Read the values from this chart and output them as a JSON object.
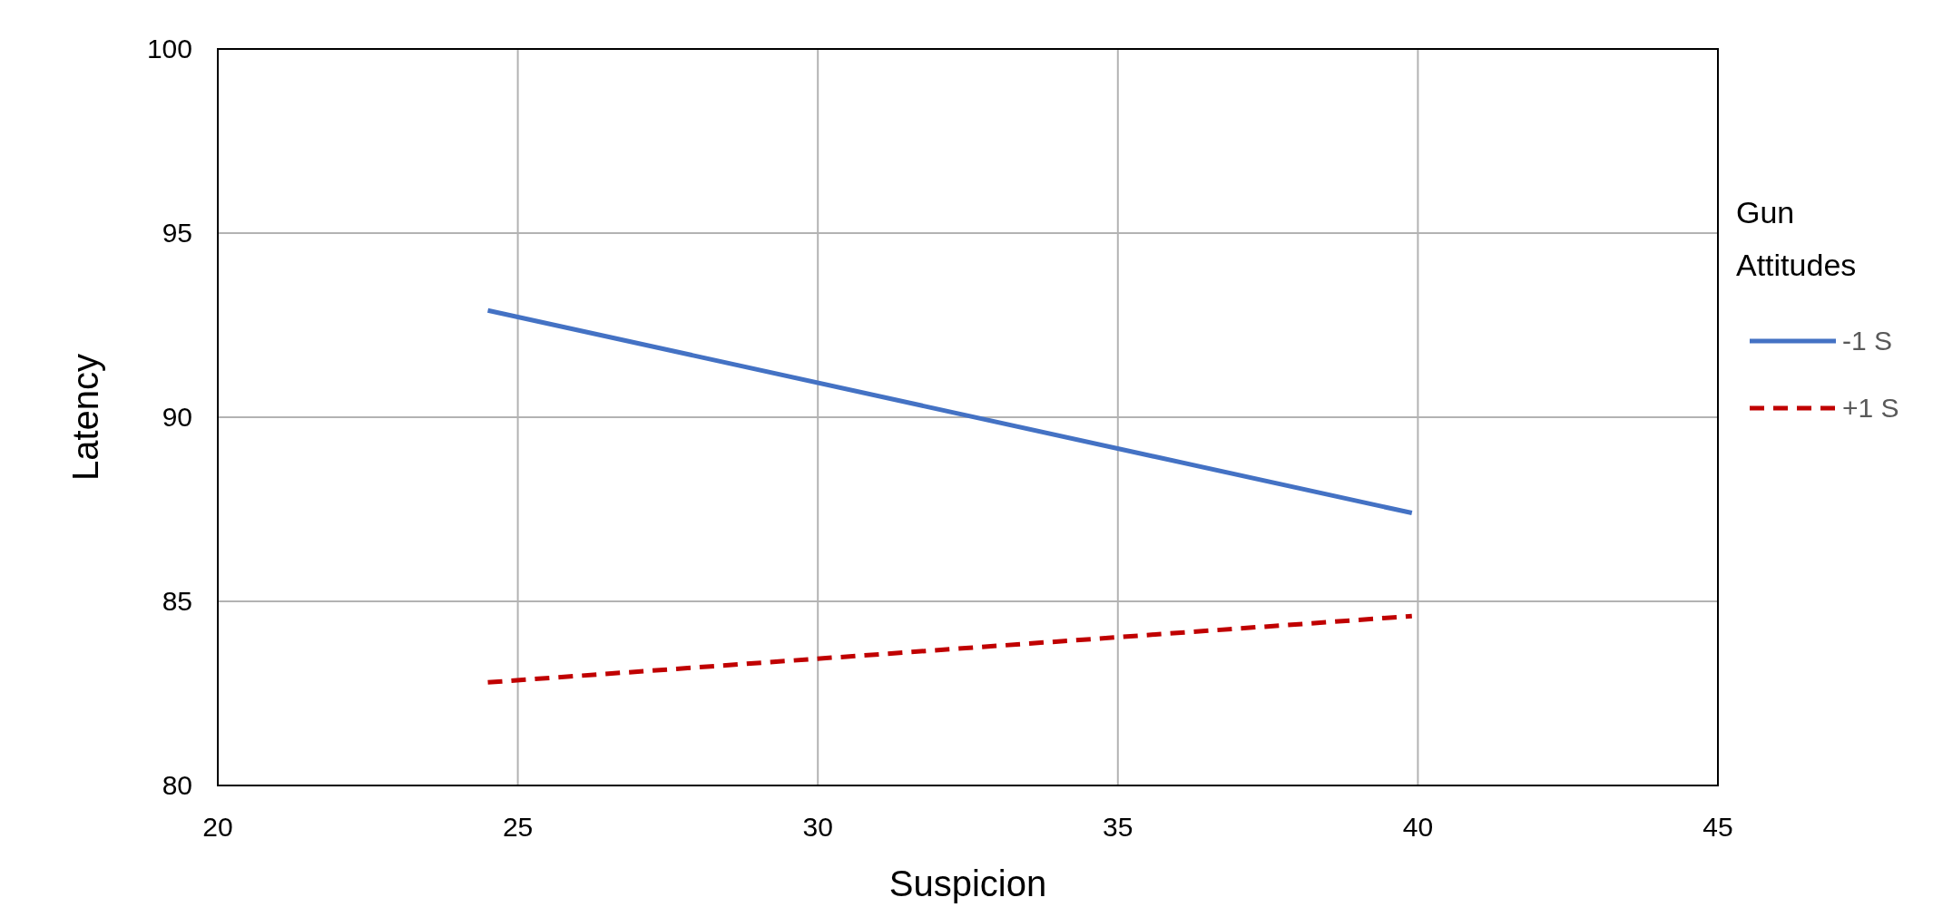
{
  "chart_data": {
    "type": "line",
    "xlabel": "Suspicion",
    "ylabel": "Latency",
    "legend_title": "Gun Attitudes",
    "x": [
      24.5,
      39.9
    ],
    "series": [
      {
        "name": "-1 S",
        "color": "#4472c4",
        "values": [
          92.9,
          87.4
        ],
        "line_style": "solid"
      },
      {
        "name": "+1 S",
        "color": "#c00000",
        "values": [
          82.8,
          84.6
        ],
        "line_style": "dashed"
      }
    ],
    "xlim": [
      20,
      45
    ],
    "xticks": [
      20,
      25,
      30,
      35,
      40,
      45
    ],
    "ylim": [
      80,
      100
    ],
    "yticks": [
      80,
      85,
      90,
      95,
      100
    ],
    "grid": true,
    "legend": "right",
    "marker": "none"
  }
}
